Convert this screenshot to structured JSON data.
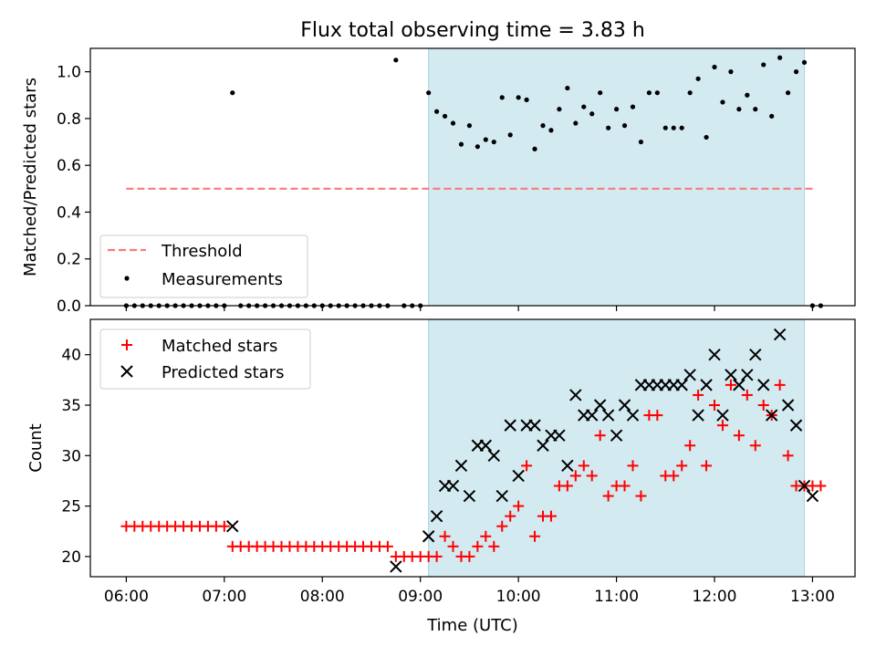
{
  "chart_data": [
    {
      "type": "scatter",
      "title": "Flux total observing time = 3.83 h",
      "xlabel": "",
      "ylabel": "Matched/Predicted stars",
      "xlim": [
        "05:38",
        "13:26"
      ],
      "ylim": [
        0,
        1.1
      ],
      "yticks": [
        "0.0",
        "0.2",
        "0.4",
        "0.6",
        "0.8",
        "1.0"
      ],
      "grid": false,
      "legend_position": "lower-left",
      "observing_window": {
        "start": "09:05",
        "end": "12:55",
        "color": "#d3eaf1"
      },
      "threshold": {
        "name": "Threshold",
        "value": 0.5,
        "x_start": "06:00",
        "x_end": "13:00",
        "color": "#f87b7b",
        "style": "dashed"
      },
      "series": [
        {
          "name": "Measurements",
          "marker": "dot",
          "color": "#000000",
          "points": [
            [
              "06:00",
              0
            ],
            [
              "06:05",
              0
            ],
            [
              "06:10",
              0
            ],
            [
              "06:15",
              0
            ],
            [
              "06:20",
              0
            ],
            [
              "06:25",
              0
            ],
            [
              "06:30",
              0
            ],
            [
              "06:35",
              0
            ],
            [
              "06:40",
              0
            ],
            [
              "06:45",
              0
            ],
            [
              "06:50",
              0
            ],
            [
              "06:55",
              0
            ],
            [
              "07:00",
              0
            ],
            [
              "07:05",
              0.91
            ],
            [
              "07:10",
              0
            ],
            [
              "07:15",
              0
            ],
            [
              "07:20",
              0
            ],
            [
              "07:25",
              0
            ],
            [
              "07:30",
              0
            ],
            [
              "07:35",
              0
            ],
            [
              "07:40",
              0
            ],
            [
              "07:45",
              0
            ],
            [
              "07:50",
              0
            ],
            [
              "07:55",
              0
            ],
            [
              "08:00",
              0
            ],
            [
              "08:05",
              0
            ],
            [
              "08:10",
              0
            ],
            [
              "08:15",
              0
            ],
            [
              "08:20",
              0
            ],
            [
              "08:25",
              0
            ],
            [
              "08:30",
              0
            ],
            [
              "08:35",
              0
            ],
            [
              "08:40",
              0
            ],
            [
              "08:45",
              1.05
            ],
            [
              "08:50",
              0
            ],
            [
              "08:55",
              0
            ],
            [
              "09:00",
              0
            ],
            [
              "09:05",
              0.91
            ],
            [
              "09:10",
              0.83
            ],
            [
              "09:15",
              0.81
            ],
            [
              "09:20",
              0.78
            ],
            [
              "09:25",
              0.69
            ],
            [
              "09:30",
              0.77
            ],
            [
              "09:35",
              0.68
            ],
            [
              "09:40",
              0.71
            ],
            [
              "09:45",
              0.7
            ],
            [
              "09:50",
              0.89
            ],
            [
              "09:55",
              0.73
            ],
            [
              "10:00",
              0.89
            ],
            [
              "10:05",
              0.88
            ],
            [
              "10:10",
              0.67
            ],
            [
              "10:15",
              0.77
            ],
            [
              "10:20",
              0.75
            ],
            [
              "10:25",
              0.84
            ],
            [
              "10:30",
              0.93
            ],
            [
              "10:35",
              0.78
            ],
            [
              "10:40",
              0.85
            ],
            [
              "10:45",
              0.82
            ],
            [
              "10:50",
              0.91
            ],
            [
              "10:55",
              0.76
            ],
            [
              "11:00",
              0.84
            ],
            [
              "11:05",
              0.77
            ],
            [
              "11:10",
              0.85
            ],
            [
              "11:15",
              0.7
            ],
            [
              "11:20",
              0.91
            ],
            [
              "11:25",
              0.91
            ],
            [
              "11:30",
              0.76
            ],
            [
              "11:35",
              0.76
            ],
            [
              "11:40",
              0.76
            ],
            [
              "11:45",
              0.91
            ],
            [
              "11:50",
              0.97
            ],
            [
              "11:55",
              0.72
            ],
            [
              "12:00",
              1.02
            ],
            [
              "12:05",
              0.87
            ],
            [
              "12:10",
              1.0
            ],
            [
              "12:15",
              0.84
            ],
            [
              "12:20",
              0.9
            ],
            [
              "12:25",
              0.84
            ],
            [
              "12:30",
              1.03
            ],
            [
              "12:35",
              0.81
            ],
            [
              "12:40",
              1.06
            ],
            [
              "12:45",
              0.91
            ],
            [
              "12:50",
              1.0
            ],
            [
              "12:55",
              1.04
            ],
            [
              "13:00",
              0
            ],
            [
              "13:05",
              0
            ]
          ]
        }
      ]
    },
    {
      "type": "scatter",
      "title": "",
      "xlabel": "Time (UTC)",
      "ylabel": "Count",
      "xlim": [
        "05:38",
        "13:26"
      ],
      "ylim": [
        18,
        43.5
      ],
      "xticks": [
        "06:00",
        "07:00",
        "08:00",
        "09:00",
        "10:00",
        "11:00",
        "12:00",
        "13:00"
      ],
      "yticks": [
        "20",
        "25",
        "30",
        "35",
        "40"
      ],
      "grid": false,
      "legend_position": "top-left",
      "observing_window": {
        "start": "09:05",
        "end": "12:55",
        "color": "#d3eaf1"
      },
      "series": [
        {
          "name": "Matched stars",
          "marker": "plus",
          "color": "#ff0000",
          "points": [
            [
              "06:00",
              23
            ],
            [
              "06:05",
              23
            ],
            [
              "06:10",
              23
            ],
            [
              "06:15",
              23
            ],
            [
              "06:20",
              23
            ],
            [
              "06:25",
              23
            ],
            [
              "06:30",
              23
            ],
            [
              "06:35",
              23
            ],
            [
              "06:40",
              23
            ],
            [
              "06:45",
              23
            ],
            [
              "06:50",
              23
            ],
            [
              "06:55",
              23
            ],
            [
              "07:00",
              23
            ],
            [
              "07:05",
              21
            ],
            [
              "07:10",
              21
            ],
            [
              "07:15",
              21
            ],
            [
              "07:20",
              21
            ],
            [
              "07:25",
              21
            ],
            [
              "07:30",
              21
            ],
            [
              "07:35",
              21
            ],
            [
              "07:40",
              21
            ],
            [
              "07:45",
              21
            ],
            [
              "07:50",
              21
            ],
            [
              "07:55",
              21
            ],
            [
              "08:00",
              21
            ],
            [
              "08:05",
              21
            ],
            [
              "08:10",
              21
            ],
            [
              "08:15",
              21
            ],
            [
              "08:20",
              21
            ],
            [
              "08:25",
              21
            ],
            [
              "08:30",
              21
            ],
            [
              "08:35",
              21
            ],
            [
              "08:40",
              21
            ],
            [
              "08:45",
              20
            ],
            [
              "08:50",
              20
            ],
            [
              "08:55",
              20
            ],
            [
              "09:00",
              20
            ],
            [
              "09:05",
              20
            ],
            [
              "09:10",
              20
            ],
            [
              "09:15",
              22
            ],
            [
              "09:20",
              21
            ],
            [
              "09:25",
              20
            ],
            [
              "09:30",
              20
            ],
            [
              "09:35",
              21
            ],
            [
              "09:40",
              22
            ],
            [
              "09:45",
              21
            ],
            [
              "09:50",
              23
            ],
            [
              "09:55",
              24
            ],
            [
              "10:00",
              25
            ],
            [
              "10:05",
              29
            ],
            [
              "10:10",
              22
            ],
            [
              "10:15",
              24
            ],
            [
              "10:20",
              24
            ],
            [
              "10:25",
              27
            ],
            [
              "10:30",
              27
            ],
            [
              "10:35",
              28
            ],
            [
              "10:40",
              29
            ],
            [
              "10:45",
              28
            ],
            [
              "10:50",
              32
            ],
            [
              "10:55",
              26
            ],
            [
              "11:00",
              27
            ],
            [
              "11:05",
              27
            ],
            [
              "11:10",
              29
            ],
            [
              "11:15",
              26
            ],
            [
              "11:20",
              34
            ],
            [
              "11:25",
              34
            ],
            [
              "11:30",
              28
            ],
            [
              "11:35",
              28
            ],
            [
              "11:40",
              29
            ],
            [
              "11:45",
              31
            ],
            [
              "11:50",
              36
            ],
            [
              "11:55",
              29
            ],
            [
              "12:00",
              35
            ],
            [
              "12:05",
              33
            ],
            [
              "12:10",
              37
            ],
            [
              "12:15",
              32
            ],
            [
              "12:20",
              36
            ],
            [
              "12:25",
              31
            ],
            [
              "12:30",
              35
            ],
            [
              "12:35",
              34
            ],
            [
              "12:40",
              37
            ],
            [
              "12:45",
              30
            ],
            [
              "12:50",
              27
            ],
            [
              "12:55",
              27
            ],
            [
              "13:00",
              27
            ],
            [
              "13:05",
              27
            ]
          ]
        },
        {
          "name": "Predicted stars",
          "marker": "x",
          "color": "#000000",
          "points": [
            [
              "07:05",
              23
            ],
            [
              "08:45",
              19
            ],
            [
              "09:05",
              22
            ],
            [
              "09:10",
              24
            ],
            [
              "09:15",
              27
            ],
            [
              "09:20",
              27
            ],
            [
              "09:25",
              29
            ],
            [
              "09:30",
              26
            ],
            [
              "09:35",
              31
            ],
            [
              "09:40",
              31
            ],
            [
              "09:45",
              30
            ],
            [
              "09:50",
              26
            ],
            [
              "09:55",
              33
            ],
            [
              "10:00",
              28
            ],
            [
              "10:05",
              33
            ],
            [
              "10:10",
              33
            ],
            [
              "10:15",
              31
            ],
            [
              "10:20",
              32
            ],
            [
              "10:25",
              32
            ],
            [
              "10:30",
              29
            ],
            [
              "10:35",
              36
            ],
            [
              "10:40",
              34
            ],
            [
              "10:45",
              34
            ],
            [
              "10:50",
              35
            ],
            [
              "10:55",
              34
            ],
            [
              "11:00",
              32
            ],
            [
              "11:05",
              35
            ],
            [
              "11:10",
              34
            ],
            [
              "11:15",
              37
            ],
            [
              "11:20",
              37
            ],
            [
              "11:25",
              37
            ],
            [
              "11:30",
              37
            ],
            [
              "11:35",
              37
            ],
            [
              "11:40",
              37
            ],
            [
              "11:45",
              38
            ],
            [
              "11:50",
              34
            ],
            [
              "11:55",
              37
            ],
            [
              "12:00",
              40
            ],
            [
              "12:05",
              34
            ],
            [
              "12:10",
              38
            ],
            [
              "12:15",
              37
            ],
            [
              "12:20",
              38
            ],
            [
              "12:25",
              40
            ],
            [
              "12:30",
              37
            ],
            [
              "12:35",
              34
            ],
            [
              "12:40",
              42
            ],
            [
              "12:45",
              35
            ],
            [
              "12:50",
              33
            ],
            [
              "12:55",
              27
            ],
            [
              "13:00",
              26
            ]
          ]
        }
      ]
    }
  ]
}
